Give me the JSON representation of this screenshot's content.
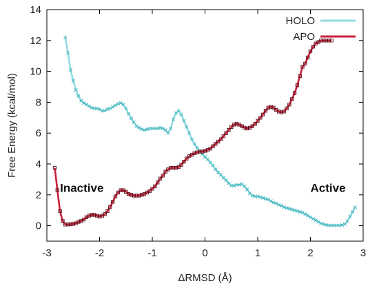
{
  "chart_data": {
    "type": "line",
    "xlabel": "ΔRMSD (Å)",
    "ylabel": "Free Energy (kcal/mol)",
    "xlim": [
      -3,
      3
    ],
    "ylim": [
      -1,
      14
    ],
    "xticks": [
      "-3",
      "-2",
      "-1",
      "0",
      "1",
      "2",
      "3"
    ],
    "yticks": [
      "0",
      "2",
      "4",
      "6",
      "8",
      "10",
      "12",
      "14"
    ],
    "legend_position": "top-right",
    "annotations": [
      {
        "text": "Inactive",
        "x": -2.75,
        "y": 2.2
      },
      {
        "text": "Active",
        "x": 2.0,
        "y": 2.2
      }
    ],
    "series": [
      {
        "name": "HOLO",
        "color": "#8fdbe0",
        "marker_color": "#4ab8c2",
        "x": [
          -2.65,
          -2.6,
          -2.55,
          -2.5,
          -2.45,
          -2.4,
          -2.35,
          -2.3,
          -2.25,
          -2.2,
          -2.15,
          -2.1,
          -2.05,
          -2.0,
          -1.95,
          -1.9,
          -1.85,
          -1.8,
          -1.75,
          -1.7,
          -1.65,
          -1.6,
          -1.55,
          -1.5,
          -1.45,
          -1.4,
          -1.35,
          -1.3,
          -1.25,
          -1.2,
          -1.15,
          -1.1,
          -1.05,
          -1.0,
          -0.95,
          -0.9,
          -0.85,
          -0.8,
          -0.75,
          -0.7,
          -0.65,
          -0.6,
          -0.55,
          -0.5,
          -0.45,
          -0.4,
          -0.35,
          -0.3,
          -0.25,
          -0.2,
          -0.15,
          -0.1,
          -0.05,
          0.0,
          0.05,
          0.1,
          0.15,
          0.2,
          0.25,
          0.3,
          0.35,
          0.4,
          0.45,
          0.5,
          0.55,
          0.6,
          0.65,
          0.7,
          0.75,
          0.8,
          0.85,
          0.9,
          0.95,
          1.0,
          1.05,
          1.1,
          1.15,
          1.2,
          1.25,
          1.3,
          1.35,
          1.4,
          1.45,
          1.5,
          1.55,
          1.6,
          1.65,
          1.7,
          1.75,
          1.8,
          1.85,
          1.9,
          1.95,
          2.0,
          2.05,
          2.1,
          2.15,
          2.2,
          2.25,
          2.3,
          2.35,
          2.4,
          2.45,
          2.5,
          2.55,
          2.6,
          2.65,
          2.7,
          2.75,
          2.8,
          2.85
        ],
        "y": [
          12.2,
          11.2,
          10.1,
          9.4,
          8.8,
          8.4,
          8.1,
          7.95,
          7.85,
          7.75,
          7.65,
          7.6,
          7.6,
          7.55,
          7.45,
          7.45,
          7.55,
          7.6,
          7.7,
          7.8,
          7.9,
          7.95,
          7.85,
          7.6,
          7.25,
          6.95,
          6.7,
          6.45,
          6.35,
          6.25,
          6.2,
          6.25,
          6.3,
          6.3,
          6.3,
          6.3,
          6.35,
          6.3,
          6.2,
          6.0,
          6.3,
          6.9,
          7.3,
          7.45,
          7.2,
          6.8,
          6.4,
          6.0,
          5.6,
          5.3,
          5.05,
          4.85,
          4.65,
          4.45,
          4.3,
          4.1,
          3.9,
          3.65,
          3.45,
          3.3,
          3.1,
          2.95,
          2.75,
          2.6,
          2.6,
          2.65,
          2.65,
          2.7,
          2.55,
          2.35,
          2.1,
          1.95,
          1.9,
          1.9,
          1.85,
          1.8,
          1.75,
          1.7,
          1.6,
          1.5,
          1.45,
          1.35,
          1.3,
          1.2,
          1.15,
          1.1,
          1.05,
          1.0,
          0.95,
          0.9,
          0.85,
          0.75,
          0.65,
          0.55,
          0.45,
          0.35,
          0.25,
          0.15,
          0.1,
          0.05,
          0.02,
          0.02,
          0.02,
          0.02,
          0.02,
          0.05,
          0.1,
          0.3,
          0.6,
          0.9,
          1.2
        ]
      },
      {
        "name": "APO",
        "color": "#c8203c",
        "marker_color": "#5a0d18",
        "x": [
          -2.85,
          -2.8,
          -2.75,
          -2.7,
          -2.65,
          -2.6,
          -2.55,
          -2.5,
          -2.45,
          -2.4,
          -2.35,
          -2.3,
          -2.25,
          -2.2,
          -2.15,
          -2.1,
          -2.05,
          -2.0,
          -1.95,
          -1.9,
          -1.85,
          -1.8,
          -1.75,
          -1.7,
          -1.65,
          -1.6,
          -1.55,
          -1.5,
          -1.45,
          -1.4,
          -1.35,
          -1.3,
          -1.25,
          -1.2,
          -1.15,
          -1.1,
          -1.05,
          -1.0,
          -0.95,
          -0.9,
          -0.85,
          -0.8,
          -0.75,
          -0.7,
          -0.65,
          -0.6,
          -0.55,
          -0.5,
          -0.45,
          -0.4,
          -0.35,
          -0.3,
          -0.25,
          -0.2,
          -0.15,
          -0.1,
          -0.05,
          0.0,
          0.05,
          0.1,
          0.15,
          0.2,
          0.25,
          0.3,
          0.35,
          0.4,
          0.45,
          0.5,
          0.55,
          0.6,
          0.65,
          0.7,
          0.75,
          0.8,
          0.85,
          0.9,
          0.95,
          1.0,
          1.05,
          1.1,
          1.15,
          1.2,
          1.25,
          1.3,
          1.35,
          1.4,
          1.45,
          1.5,
          1.55,
          1.6,
          1.65,
          1.7,
          1.75,
          1.8,
          1.85,
          1.9,
          1.95,
          2.0,
          2.05,
          2.1,
          2.15,
          2.2,
          2.25,
          2.3,
          2.35,
          2.4
        ],
        "y": [
          3.75,
          2.3,
          0.95,
          0.3,
          0.08,
          0.08,
          0.1,
          0.12,
          0.15,
          0.25,
          0.3,
          0.4,
          0.55,
          0.65,
          0.7,
          0.7,
          0.65,
          0.6,
          0.65,
          0.75,
          0.95,
          1.2,
          1.55,
          1.9,
          2.15,
          2.3,
          2.3,
          2.2,
          2.05,
          2.0,
          1.95,
          1.95,
          1.95,
          2.0,
          2.05,
          2.15,
          2.25,
          2.4,
          2.55,
          2.8,
          3.05,
          3.25,
          3.5,
          3.65,
          3.75,
          3.75,
          3.75,
          3.8,
          3.95,
          4.15,
          4.35,
          4.5,
          4.6,
          4.7,
          4.75,
          4.8,
          4.8,
          4.85,
          4.9,
          5.0,
          5.15,
          5.3,
          5.45,
          5.6,
          5.8,
          6.0,
          6.2,
          6.4,
          6.55,
          6.6,
          6.55,
          6.45,
          6.35,
          6.3,
          6.35,
          6.45,
          6.6,
          6.8,
          7.0,
          7.2,
          7.45,
          7.65,
          7.7,
          7.65,
          7.5,
          7.4,
          7.35,
          7.4,
          7.6,
          7.85,
          8.2,
          8.6,
          9.1,
          9.7,
          10.3,
          10.5,
          10.9,
          11.3,
          11.6,
          11.8,
          11.9,
          12.0,
          12.0,
          12.0,
          12.0,
          12.0
        ]
      }
    ]
  }
}
